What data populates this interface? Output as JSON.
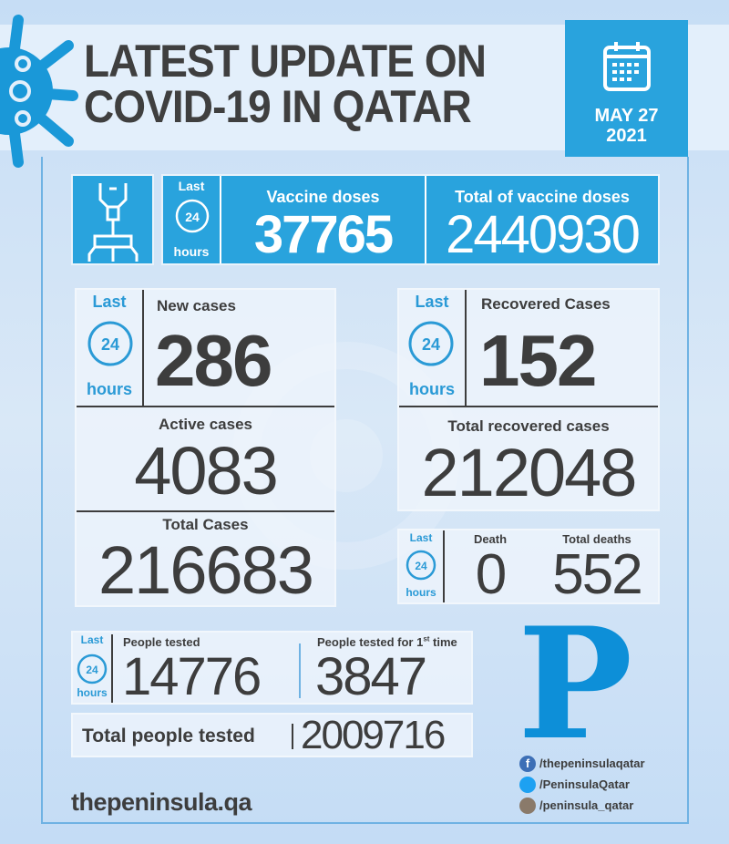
{
  "header": {
    "title_line1": "LATEST UPDATE ON",
    "title_line2": "COVID-19 IN QATAR",
    "date_line1": "MAY 27",
    "date_line2": "2021",
    "icons": [
      "virus-icon",
      "calendar-icon"
    ]
  },
  "last24": {
    "last": "Last",
    "hours": "hours",
    "clock": "24"
  },
  "vaccine": {
    "icon": "vaccine-icon",
    "doses_label": "Vaccine doses",
    "doses": "37765",
    "total_label": "Total of vaccine doses",
    "total": "2440930"
  },
  "cases": {
    "new_label": "New cases",
    "new": "286",
    "active_label": "Active cases",
    "active": "4083",
    "total_label": "Total Cases",
    "total": "216683"
  },
  "recovered": {
    "label": "Recovered Cases",
    "value": "152",
    "total_label": "Total recovered cases",
    "total": "212048"
  },
  "deaths": {
    "label": "Death",
    "value": "0",
    "total_label": "Total deaths",
    "total": "552"
  },
  "tests": {
    "tested_label": "People tested",
    "tested": "14776",
    "first_label": "People tested for 1",
    "first_sup": "st",
    "first_suffix": " time",
    "first": "3847",
    "total_label": "Total people tested",
    "total": "2009716"
  },
  "footer": {
    "website": "thepeninsula.qa",
    "logo": "P",
    "social": [
      {
        "icon": "facebook-icon",
        "handle": "/thepeninsulaqatar"
      },
      {
        "icon": "twitter-icon",
        "handle": "/PeninsulaQatar"
      },
      {
        "icon": "instagram-icon",
        "handle": "/peninsula_qatar"
      }
    ]
  },
  "colors": {
    "accent": "#29a3dd",
    "text": "#3d3d3d",
    "background": "#c6ddf5"
  }
}
